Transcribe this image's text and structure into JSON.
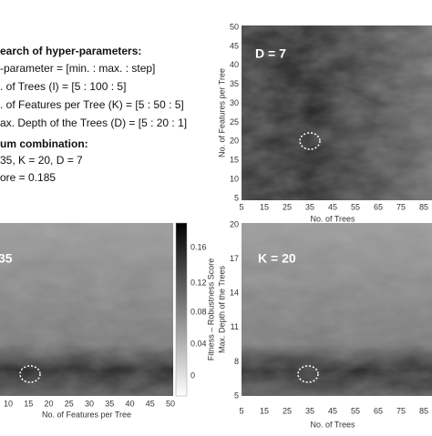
{
  "text_block": {
    "lines": [
      "earch of hyper-parameters:",
      "-parameter = [min. : max. : step]",
      ". of Trees (I) = [5 : 100 : 5]",
      ". of Features per Tree (K) = [5 : 50 : 5]",
      "ax. Depth of the Trees (D) = [5 : 20 : 1]",
      "um combination:",
      "35, K = 20, D = 7",
      "ore = 0.185"
    ]
  },
  "panels": [
    {
      "label": "D = 7",
      "xlabel": "No. of Trees",
      "ylabel": "No. of Features per Tree",
      "xticks": [
        "5",
        "15",
        "25",
        "35",
        "45",
        "55",
        "65",
        "75",
        "85"
      ],
      "yticks": [
        "50",
        "45",
        "40",
        "35",
        "30",
        "25",
        "20",
        "15",
        "10",
        "5"
      ]
    },
    {
      "label": "35",
      "xlabel": "No. of Features per Tree",
      "xticks": [
        "10",
        "15",
        "20",
        "25",
        "30",
        "35",
        "40",
        "45",
        "50"
      ]
    },
    {
      "label": "K = 20",
      "xlabel": "No. of Trees",
      "ylabel": "Max. Depth of the Trees",
      "xticks": [
        "5",
        "15",
        "25",
        "35",
        "45",
        "55",
        "65",
        "75",
        "85"
      ],
      "yticks": [
        "20",
        "17",
        "14",
        "11",
        "8",
        "5"
      ]
    }
  ],
  "colorbar": {
    "label": "Fitness – Robustness Score",
    "ticks": [
      "0.16",
      "0.12",
      "0.08",
      "0.04",
      "0"
    ]
  }
}
